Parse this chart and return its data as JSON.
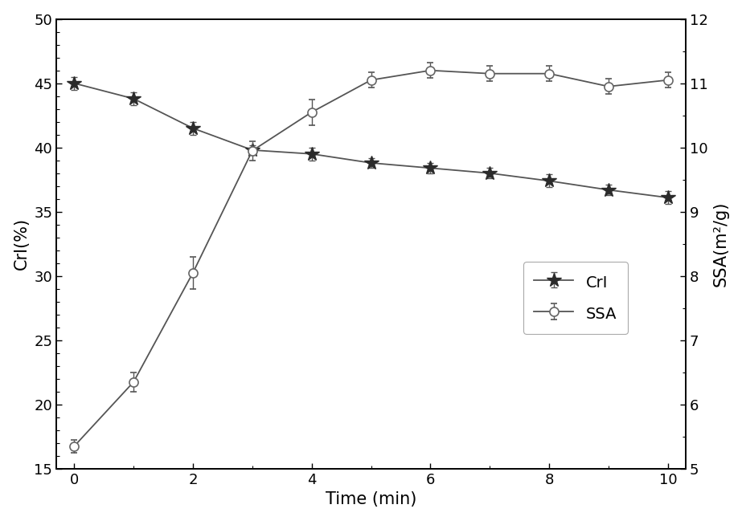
{
  "time": [
    0,
    1,
    2,
    3,
    4,
    5,
    6,
    7,
    8,
    9,
    10
  ],
  "CrI": [
    45.0,
    43.8,
    41.5,
    39.8,
    39.5,
    38.8,
    38.4,
    38.0,
    37.4,
    36.7,
    36.1
  ],
  "CrI_err": [
    0.5,
    0.5,
    0.5,
    0.4,
    0.5,
    0.4,
    0.4,
    0.4,
    0.5,
    0.4,
    0.5
  ],
  "SSA": [
    5.35,
    6.35,
    8.05,
    9.95,
    10.55,
    11.05,
    11.2,
    11.15,
    11.15,
    10.95,
    11.05
  ],
  "SSA_err": [
    0.1,
    0.15,
    0.25,
    0.15,
    0.2,
    0.12,
    0.12,
    0.12,
    0.12,
    0.12,
    0.12
  ],
  "xlabel": "Time (min)",
  "ylabel_left": "CrI(%)",
  "ylabel_right": "SSA(m²/g)",
  "xlim": [
    -0.3,
    10.3
  ],
  "ylim_left": [
    15,
    50
  ],
  "ylim_right": [
    5,
    12
  ],
  "xticks": [
    0,
    2,
    4,
    6,
    8,
    10
  ],
  "yticks_left": [
    15,
    20,
    25,
    30,
    35,
    40,
    45,
    50
  ],
  "yticks_right": [
    5,
    6,
    7,
    8,
    9,
    10,
    11,
    12
  ],
  "line_color": "#555555",
  "CrI_marker_color": "#2b2b2b",
  "SSA_marker_color": "#666666",
  "legend_CrI": "CrI",
  "legend_SSA": "SSA",
  "background_color": "#ffffff"
}
